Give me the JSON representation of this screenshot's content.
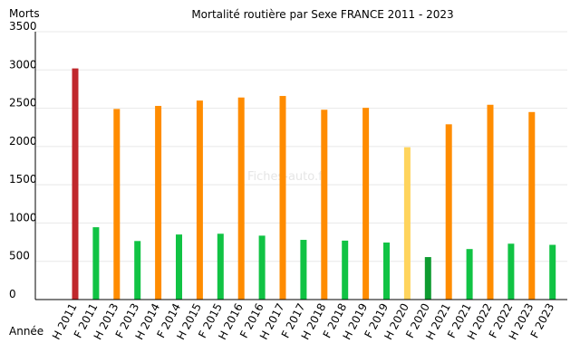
{
  "chart_data": {
    "type": "bar",
    "title": "Mortalité routière par Sexe FRANCE 2011 - 2023",
    "ylabel": "Morts",
    "xlabel": "Année",
    "watermark": "Fiches-auto.fr",
    "ylim": [
      0,
      3500
    ],
    "yticks": [
      "0",
      "500",
      "1000",
      "1500",
      "2000",
      "2500",
      "3000",
      "3500"
    ],
    "ytick_values": [
      0,
      500,
      1000,
      1500,
      2000,
      2500,
      3000,
      3500
    ],
    "grid": true,
    "categories": [
      "H 2011",
      "F 2011",
      "H 2013",
      "F 2013",
      "H 2014",
      "F 2014",
      "H 2015",
      "F 2015",
      "H 2016",
      "F 2016",
      "H 2017",
      "F 2017",
      "H 2018",
      "F 2018",
      "H 2019",
      "F 2019",
      "H 2020",
      "F 2020",
      "H 2021",
      "F 2021",
      "H 2022",
      "F 2022",
      "H 2023",
      "F 2023"
    ],
    "values": [
      3020,
      945,
      2490,
      765,
      2530,
      850,
      2600,
      860,
      2640,
      835,
      2660,
      780,
      2480,
      770,
      2505,
      745,
      1990,
      555,
      2290,
      660,
      2545,
      730,
      2450,
      715
    ],
    "colors": [
      "#c0282d",
      "#11c344",
      "#ff8c00",
      "#11c344",
      "#ff8c00",
      "#11c344",
      "#ff8c00",
      "#11c344",
      "#ff8c00",
      "#11c344",
      "#ff8c00",
      "#11c344",
      "#ff8c00",
      "#11c344",
      "#ff8c00",
      "#11c344",
      "#ffd45c",
      "#0e9b30",
      "#ff8c00",
      "#11c344",
      "#ff8c00",
      "#11c344",
      "#ff8c00",
      "#11c344"
    ]
  }
}
